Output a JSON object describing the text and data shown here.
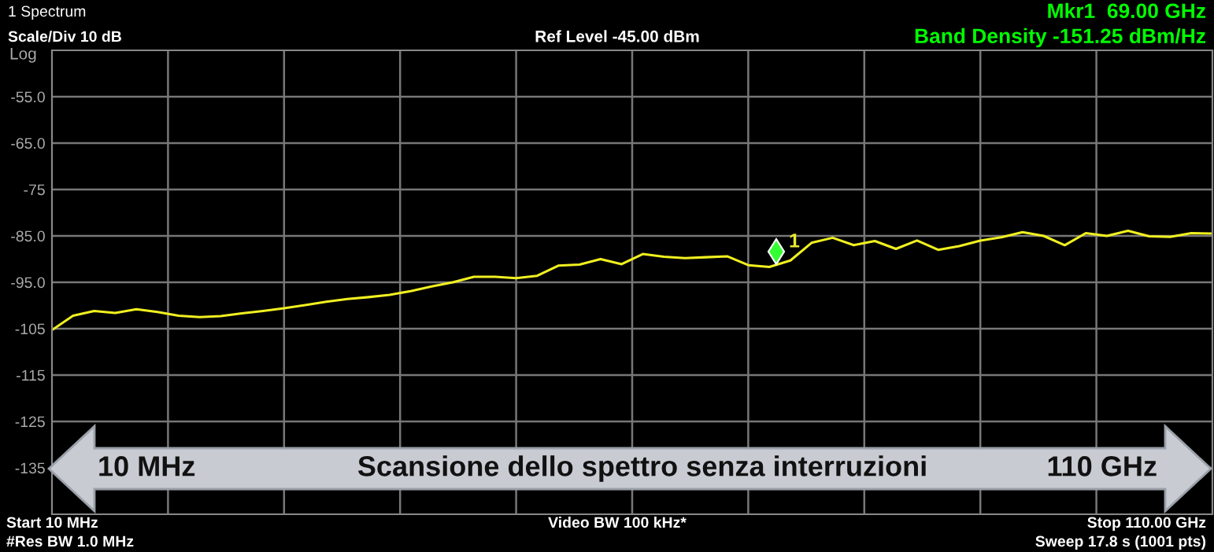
{
  "chart_data": {
    "type": "line",
    "annotations": [
      "1 Spectrum",
      "Scale/Div 10 dB",
      "Ref Level -45.00 dBm",
      "Mkr1  69.00 GHz",
      "Band Density -151.25 dBm/Hz",
      "Log",
      "Start 10 MHz",
      "#Res BW 1.0 MHz",
      "Video BW 100 kHz*",
      "Stop 110.00 GHz",
      "Sweep 17.8 s (1001 pts)",
      "10 MHz",
      "Scansione dello spettro senza interruzioni",
      "110 GHz",
      "1"
    ],
    "categories": [
      null,
      null,
      null,
      null,
      null,
      null,
      null,
      null,
      null,
      null,
      null,
      null,
      null,
      null,
      null,
      null,
      null,
      null,
      null,
      null,
      null,
      null,
      null,
      null,
      null,
      null,
      null,
      null,
      null,
      null,
      null,
      null,
      null,
      null,
      null,
      null,
      null,
      null,
      null,
      null,
      null,
      null,
      null,
      null,
      null,
      null,
      null,
      null,
      null,
      null,
      null,
      null,
      null,
      null,
      null,
      null
    ],
    "series": [
      {
        "color": "#f0f020",
        "values": [
          -105.3,
          -102.2,
          -101.2,
          -101.6,
          -100.8,
          -101.4,
          -102.2,
          -102.5,
          -102.3,
          -101.7,
          -101.2,
          -100.6,
          -99.9,
          -99.2,
          -98.6,
          -98.2,
          -97.7,
          -96.9,
          -95.9,
          -95.0,
          -93.8,
          -93.8,
          -94.1,
          -93.6,
          -91.4,
          -91.2,
          -90.0,
          -91.1,
          -88.9,
          -89.5,
          -89.8,
          -89.6,
          -89.4,
          -91.3,
          -91.7,
          -90.3,
          -86.5,
          -85.4,
          -87.0,
          -86.1,
          -87.8,
          -86.0,
          -88.0,
          -87.2,
          -86.0,
          -85.3,
          -84.2,
          -85.0,
          -87.0,
          -84.4,
          -85.0,
          -83.9,
          -85.1,
          -85.2,
          -84.4,
          -84.5
        ]
      }
    ],
    "ylim": [
      -145,
      -45
    ],
    "yticks": [
      {
        "value": -55,
        "label": "-55.0"
      },
      {
        "value": -65,
        "label": "-65.0"
      },
      {
        "value": -75,
        "label": "-75"
      },
      {
        "value": -85,
        "label": "-85.0"
      },
      {
        "value": -95,
        "label": "-95.0"
      },
      {
        "value": -105,
        "label": "-105"
      },
      {
        "value": -115,
        "label": "-115"
      },
      {
        "value": -125,
        "label": "-125"
      },
      {
        "value": -135,
        "label": "-135"
      }
    ],
    "grid": true,
    "marker": "none",
    "line_style": "solid"
  }
}
